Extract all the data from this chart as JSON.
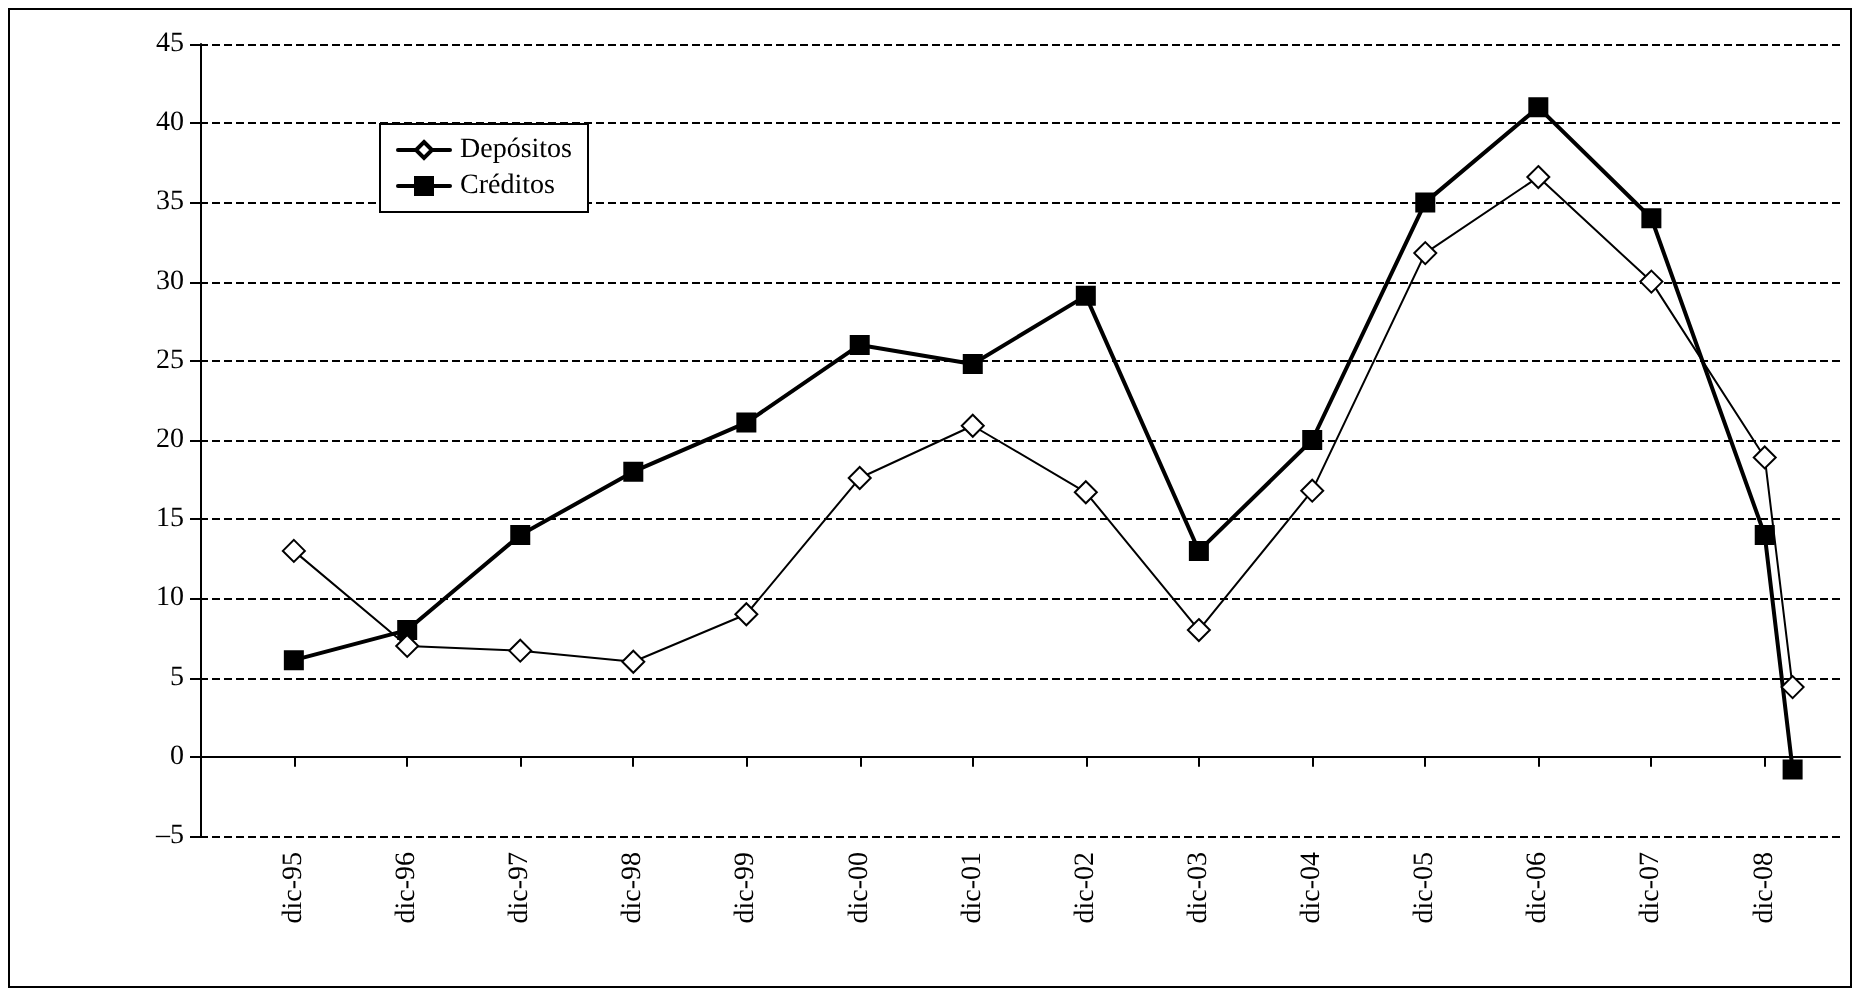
{
  "chart_data": {
    "type": "line",
    "x": [
      "1995-12",
      "1996-12",
      "1997-12",
      "1998-12",
      "1999-12",
      "2000-12",
      "2001-12",
      "2002-12",
      "2003-12",
      "2004-12",
      "2005-12",
      "2006-12",
      "2007-12",
      "2008-12",
      "2009-03"
    ],
    "series": [
      {
        "name": "Depósitos",
        "color": "#000000",
        "marker": "diamond",
        "values": [
          13,
          7,
          6.7,
          6,
          9,
          17.6,
          20.9,
          16.7,
          8,
          16.8,
          31.8,
          36.6,
          30,
          18.9,
          4.4
        ]
      },
      {
        "name": "Créditos",
        "color": "#000000",
        "marker": "square",
        "values": [
          6.1,
          8,
          14,
          18,
          21.1,
          26,
          24.8,
          29.1,
          13,
          20,
          35,
          41,
          34,
          14,
          -0.8
        ]
      }
    ],
    "xlim": [
      "1995-02",
      "2009-08"
    ],
    "xticks": [
      {
        "value": "1995-12",
        "label": "dic-95"
      },
      {
        "value": "1996-12",
        "label": "dic-96"
      },
      {
        "value": "1997-12",
        "label": "dic-97"
      },
      {
        "value": "1998-12",
        "label": "dic-98"
      },
      {
        "value": "1999-12",
        "label": "dic-99"
      },
      {
        "value": "2000-12",
        "label": "dic-00"
      },
      {
        "value": "2001-12",
        "label": "dic-01"
      },
      {
        "value": "2002-12",
        "label": "dic-02"
      },
      {
        "value": "2003-12",
        "label": "dic-03"
      },
      {
        "value": "2004-12",
        "label": "dic-04"
      },
      {
        "value": "2005-12",
        "label": "dic-05"
      },
      {
        "value": "2006-12",
        "label": "dic-06"
      },
      {
        "value": "2007-12",
        "label": "dic-07"
      },
      {
        "value": "2008-12",
        "label": "dic-08"
      }
    ],
    "ylim": [
      -5,
      45
    ],
    "yticks": [
      {
        "value": -5,
        "label": "–5"
      },
      0,
      5,
      10,
      15,
      20,
      25,
      30,
      35,
      40,
      45
    ],
    "grid": "y",
    "legend": "top left",
    "line_style": "solid"
  }
}
